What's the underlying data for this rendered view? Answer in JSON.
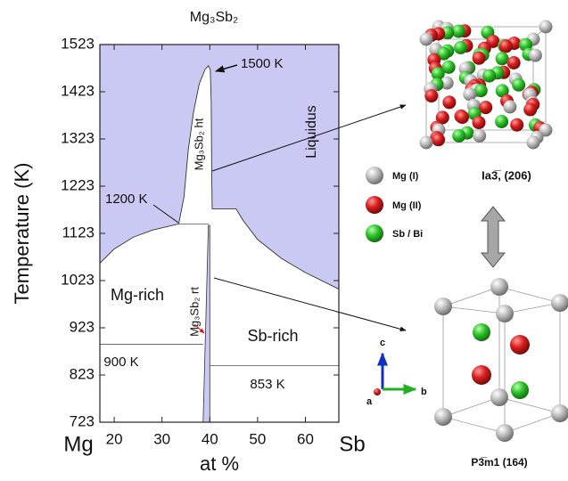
{
  "chart_data": {
    "type": "phase_diagram",
    "title": "Mg₃Sb₂",
    "x_label": "at %",
    "y_label": "Temperature (K)",
    "x_left_label": "Mg",
    "x_right_label": "Sb",
    "xlim": [
      17,
      67
    ],
    "ylim": [
      723,
      1523
    ],
    "xticks": [
      20,
      30,
      40,
      50,
      60
    ],
    "yticks": [
      723,
      823,
      923,
      1023,
      1123,
      1223,
      1323,
      1423,
      1523
    ],
    "liquid_color": "#c9c9f4",
    "liquidus": {
      "x": [
        17,
        20,
        24,
        28,
        33.5,
        34.6,
        35.5,
        36.6,
        37.8,
        39,
        39.7,
        40.1,
        40.3,
        40.4,
        40.5,
        45.5,
        47,
        50,
        55,
        60,
        67
      ],
      "y": [
        1060,
        1090,
        1115,
        1130,
        1143,
        1200,
        1300,
        1380,
        1440,
        1470,
        1478,
        1470,
        1400,
        1250,
        1175,
        1175,
        1150,
        1110,
        1070,
        1040,
        1005
      ]
    },
    "rt_field": {
      "x": [
        39.7,
        40,
        40,
        38.6
      ],
      "y": [
        1140,
        1140,
        723,
        723
      ]
    },
    "lines": [
      {
        "x": [
          33.5,
          39.8
        ],
        "y": [
          1143,
          1143
        ]
      },
      {
        "x": [
          17,
          38.6
        ],
        "y": [
          888,
          888
        ]
      },
      {
        "x": [
          40,
          67
        ],
        "y": [
          843,
          843
        ]
      }
    ],
    "annotations": [
      "1500 K",
      "1200 K",
      "Liquidus",
      "Mg₃Sb₂ ht",
      "Mg₃Sb₂ rt",
      "Mg-rich",
      "Sb-rich",
      "900 K",
      "853 K"
    ]
  },
  "structures": {
    "top_label": "Ia3̅, (206)",
    "legend": [
      "Mg (I)",
      "Mg (II)",
      "Sb / Bi"
    ],
    "bottom_label": "P3̅m1 (164)",
    "axes": [
      "a",
      "b",
      "c"
    ]
  }
}
